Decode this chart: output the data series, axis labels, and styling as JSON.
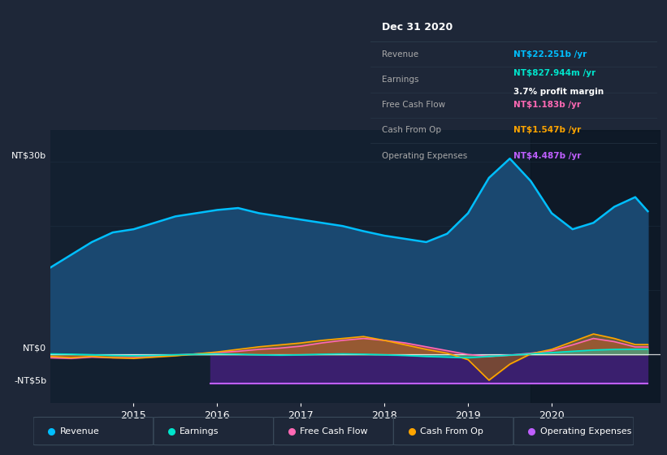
{
  "bg_color": "#1e2738",
  "plot_bg": "#132030",
  "grid_color": "#2a3f52",
  "ylabel_30b": "NT$30b",
  "ylabel_0": "NT$0",
  "ylabel_neg5b": "-NT$5b",
  "ylim": [
    -7.5,
    35
  ],
  "xlim_start": 2014.0,
  "xlim_end": 2021.3,
  "xtick_labels": [
    "2015",
    "2016",
    "2017",
    "2018",
    "2019",
    "2020"
  ],
  "xtick_positions": [
    2015,
    2016,
    2017,
    2018,
    2019,
    2020
  ],
  "revenue_x": [
    2014.0,
    2014.25,
    2014.5,
    2014.75,
    2015.0,
    2015.25,
    2015.5,
    2015.75,
    2016.0,
    2016.25,
    2016.5,
    2016.75,
    2017.0,
    2017.25,
    2017.5,
    2017.75,
    2018.0,
    2018.25,
    2018.5,
    2018.75,
    2019.0,
    2019.25,
    2019.5,
    2019.75,
    2020.0,
    2020.25,
    2020.5,
    2020.75,
    2021.0,
    2021.15
  ],
  "revenue_y": [
    13.5,
    15.5,
    17.5,
    19.0,
    19.5,
    20.5,
    21.5,
    22.0,
    22.5,
    22.8,
    22.0,
    21.5,
    21.0,
    20.5,
    20.0,
    19.2,
    18.5,
    18.0,
    17.5,
    18.8,
    22.0,
    27.5,
    30.5,
    27.0,
    22.0,
    19.5,
    20.5,
    23.0,
    24.5,
    22.3
  ],
  "earnings_x": [
    2014.0,
    2014.25,
    2014.5,
    2014.75,
    2015.0,
    2015.25,
    2015.5,
    2015.75,
    2016.0,
    2016.25,
    2016.5,
    2016.75,
    2017.0,
    2017.25,
    2017.5,
    2017.75,
    2018.0,
    2018.25,
    2018.5,
    2018.75,
    2019.0,
    2019.25,
    2019.5,
    2019.75,
    2020.0,
    2020.25,
    2020.5,
    2020.75,
    2021.0,
    2021.15
  ],
  "earnings_y": [
    0.1,
    0.05,
    -0.05,
    -0.15,
    -0.2,
    -0.15,
    -0.05,
    0.05,
    0.1,
    0.05,
    -0.05,
    -0.1,
    -0.05,
    0.05,
    0.1,
    0.05,
    -0.05,
    -0.15,
    -0.3,
    -0.4,
    -0.5,
    -0.3,
    -0.1,
    0.1,
    0.3,
    0.5,
    0.7,
    0.8,
    0.83,
    0.83
  ],
  "fcf_x": [
    2014.0,
    2014.25,
    2014.5,
    2014.75,
    2015.0,
    2015.25,
    2015.5,
    2015.75,
    2016.0,
    2016.25,
    2016.5,
    2016.75,
    2017.0,
    2017.25,
    2017.5,
    2017.75,
    2018.0,
    2018.25,
    2018.5,
    2018.75,
    2019.0,
    2019.25,
    2019.5,
    2019.75,
    2020.0,
    2020.25,
    2020.5,
    2020.75,
    2021.0,
    2021.15
  ],
  "fcf_y": [
    -0.5,
    -0.6,
    -0.4,
    -0.5,
    -0.5,
    -0.3,
    -0.1,
    0.1,
    0.3,
    0.5,
    0.8,
    1.0,
    1.3,
    1.8,
    2.2,
    2.5,
    2.2,
    1.8,
    1.2,
    0.6,
    0.0,
    -0.3,
    -0.1,
    0.2,
    0.6,
    1.5,
    2.5,
    2.0,
    1.18,
    1.18
  ],
  "cop_x": [
    2014.0,
    2014.25,
    2014.5,
    2014.75,
    2015.0,
    2015.25,
    2015.5,
    2015.75,
    2016.0,
    2016.25,
    2016.5,
    2016.75,
    2017.0,
    2017.25,
    2017.5,
    2017.75,
    2018.0,
    2018.25,
    2018.5,
    2018.75,
    2019.0,
    2019.25,
    2019.5,
    2019.75,
    2020.0,
    2020.25,
    2020.5,
    2020.75,
    2021.0,
    2021.15
  ],
  "cop_y": [
    -0.3,
    -0.5,
    -0.3,
    -0.5,
    -0.6,
    -0.4,
    -0.2,
    0.1,
    0.4,
    0.8,
    1.2,
    1.5,
    1.8,
    2.2,
    2.5,
    2.8,
    2.2,
    1.5,
    0.8,
    0.2,
    -0.8,
    -4.0,
    -1.5,
    0.1,
    0.8,
    2.0,
    3.2,
    2.5,
    1.55,
    1.55
  ],
  "opex_x": [
    2015.92,
    2016.0,
    2016.25,
    2016.5,
    2016.75,
    2017.0,
    2017.25,
    2017.5,
    2017.75,
    2018.0,
    2018.25,
    2018.5,
    2018.75,
    2019.0,
    2019.25,
    2019.5,
    2019.75,
    2020.0,
    2020.25,
    2020.5,
    2020.75,
    2021.0,
    2021.15
  ],
  "opex_y": [
    -4.49,
    -4.49,
    -4.49,
    -4.49,
    -4.49,
    -4.49,
    -4.49,
    -4.49,
    -4.49,
    -4.49,
    -4.49,
    -4.49,
    -4.49,
    -4.49,
    -4.49,
    -4.49,
    -4.49,
    -4.49,
    -4.49,
    -4.49,
    -4.49,
    -4.49,
    -4.49
  ],
  "highlight_x": 2019.75,
  "tooltip": {
    "date": "Dec 31 2020",
    "rows": [
      {
        "label": "Revenue",
        "value": "NT$22.251b /yr",
        "color": "#00bfff",
        "margin": null
      },
      {
        "label": "Earnings",
        "value": "NT$827.944m /yr",
        "color": "#00e5cc",
        "margin": "3.7% profit margin"
      },
      {
        "label": "Free Cash Flow",
        "value": "NT$1.183b /yr",
        "color": "#ff69b4",
        "margin": null
      },
      {
        "label": "Cash From Op",
        "value": "NT$1.547b /yr",
        "color": "#ffa500",
        "margin": null
      },
      {
        "label": "Operating Expenses",
        "value": "NT$4.487b /yr",
        "color": "#bf5fff",
        "margin": null
      }
    ]
  },
  "legend": [
    {
      "label": "Revenue",
      "color": "#00bfff"
    },
    {
      "label": "Earnings",
      "color": "#00e5cc"
    },
    {
      "label": "Free Cash Flow",
      "color": "#ff69b4"
    },
    {
      "label": "Cash From Op",
      "color": "#ffa500"
    },
    {
      "label": "Operating Expenses",
      "color": "#bf5fff"
    }
  ]
}
